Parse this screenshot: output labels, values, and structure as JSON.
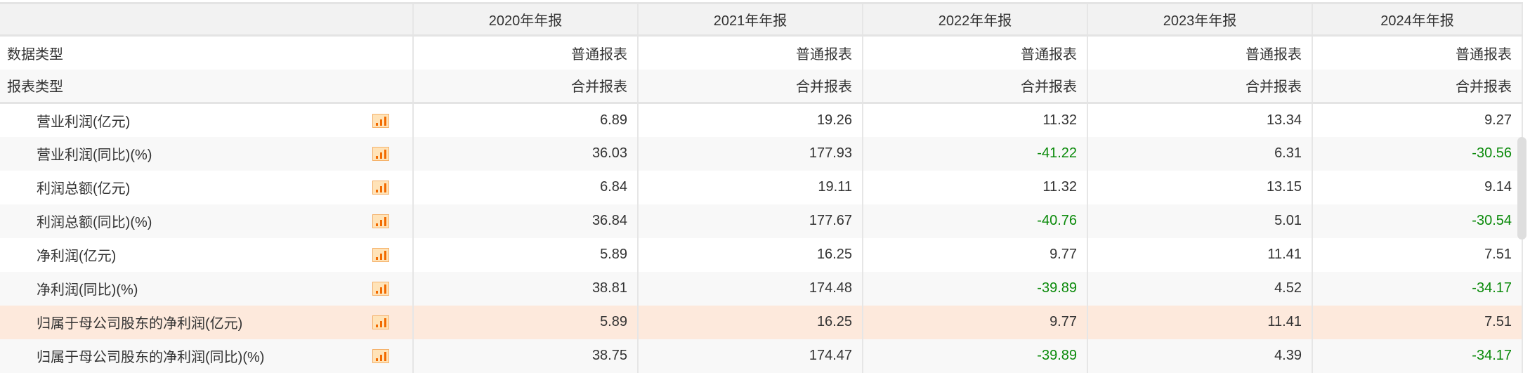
{
  "columns": [
    "",
    "2020年年报",
    "2021年年报",
    "2022年年报",
    "2023年年报",
    "2024年年报"
  ],
  "meta_rows": [
    {
      "label": "数据类型",
      "values": [
        "普通报表",
        "普通报表",
        "普通报表",
        "普通报表",
        "普通报表"
      ]
    },
    {
      "label": "报表类型",
      "values": [
        "合并报表",
        "合并报表",
        "合并报表",
        "合并报表",
        "合并报表"
      ]
    }
  ],
  "rows": [
    {
      "label": "营业利润(亿元)",
      "values": [
        "6.89",
        "19.26",
        "11.32",
        "13.34",
        "9.27"
      ]
    },
    {
      "label": "营业利润(同比)(%)",
      "values": [
        "36.03",
        "177.93",
        "-41.22",
        "6.31",
        "-30.56"
      ]
    },
    {
      "label": "利润总额(亿元)",
      "values": [
        "6.84",
        "19.11",
        "11.32",
        "13.15",
        "9.14"
      ]
    },
    {
      "label": "利润总额(同比)(%)",
      "values": [
        "36.84",
        "177.67",
        "-40.76",
        "5.01",
        "-30.54"
      ]
    },
    {
      "label": "净利润(亿元)",
      "values": [
        "5.89",
        "16.25",
        "9.77",
        "11.41",
        "7.51"
      ]
    },
    {
      "label": "净利润(同比)(%)",
      "values": [
        "38.81",
        "174.48",
        "-39.89",
        "4.52",
        "-34.17"
      ]
    },
    {
      "label": "归属于母公司股东的净利润(亿元)",
      "values": [
        "5.89",
        "16.25",
        "9.77",
        "11.41",
        "7.51"
      ],
      "highlighted": true
    },
    {
      "label": "归属于母公司股东的净利润(同比)(%)",
      "values": [
        "38.75",
        "174.47",
        "-39.89",
        "4.39",
        "-34.17"
      ]
    }
  ],
  "icons": {
    "row_chart": "bar-chart-icon"
  },
  "colors": {
    "negative": "#0a8a0a",
    "highlight": "#fde9dc",
    "header": "#f2f2f2",
    "chart_icon": "#f26a00"
  }
}
